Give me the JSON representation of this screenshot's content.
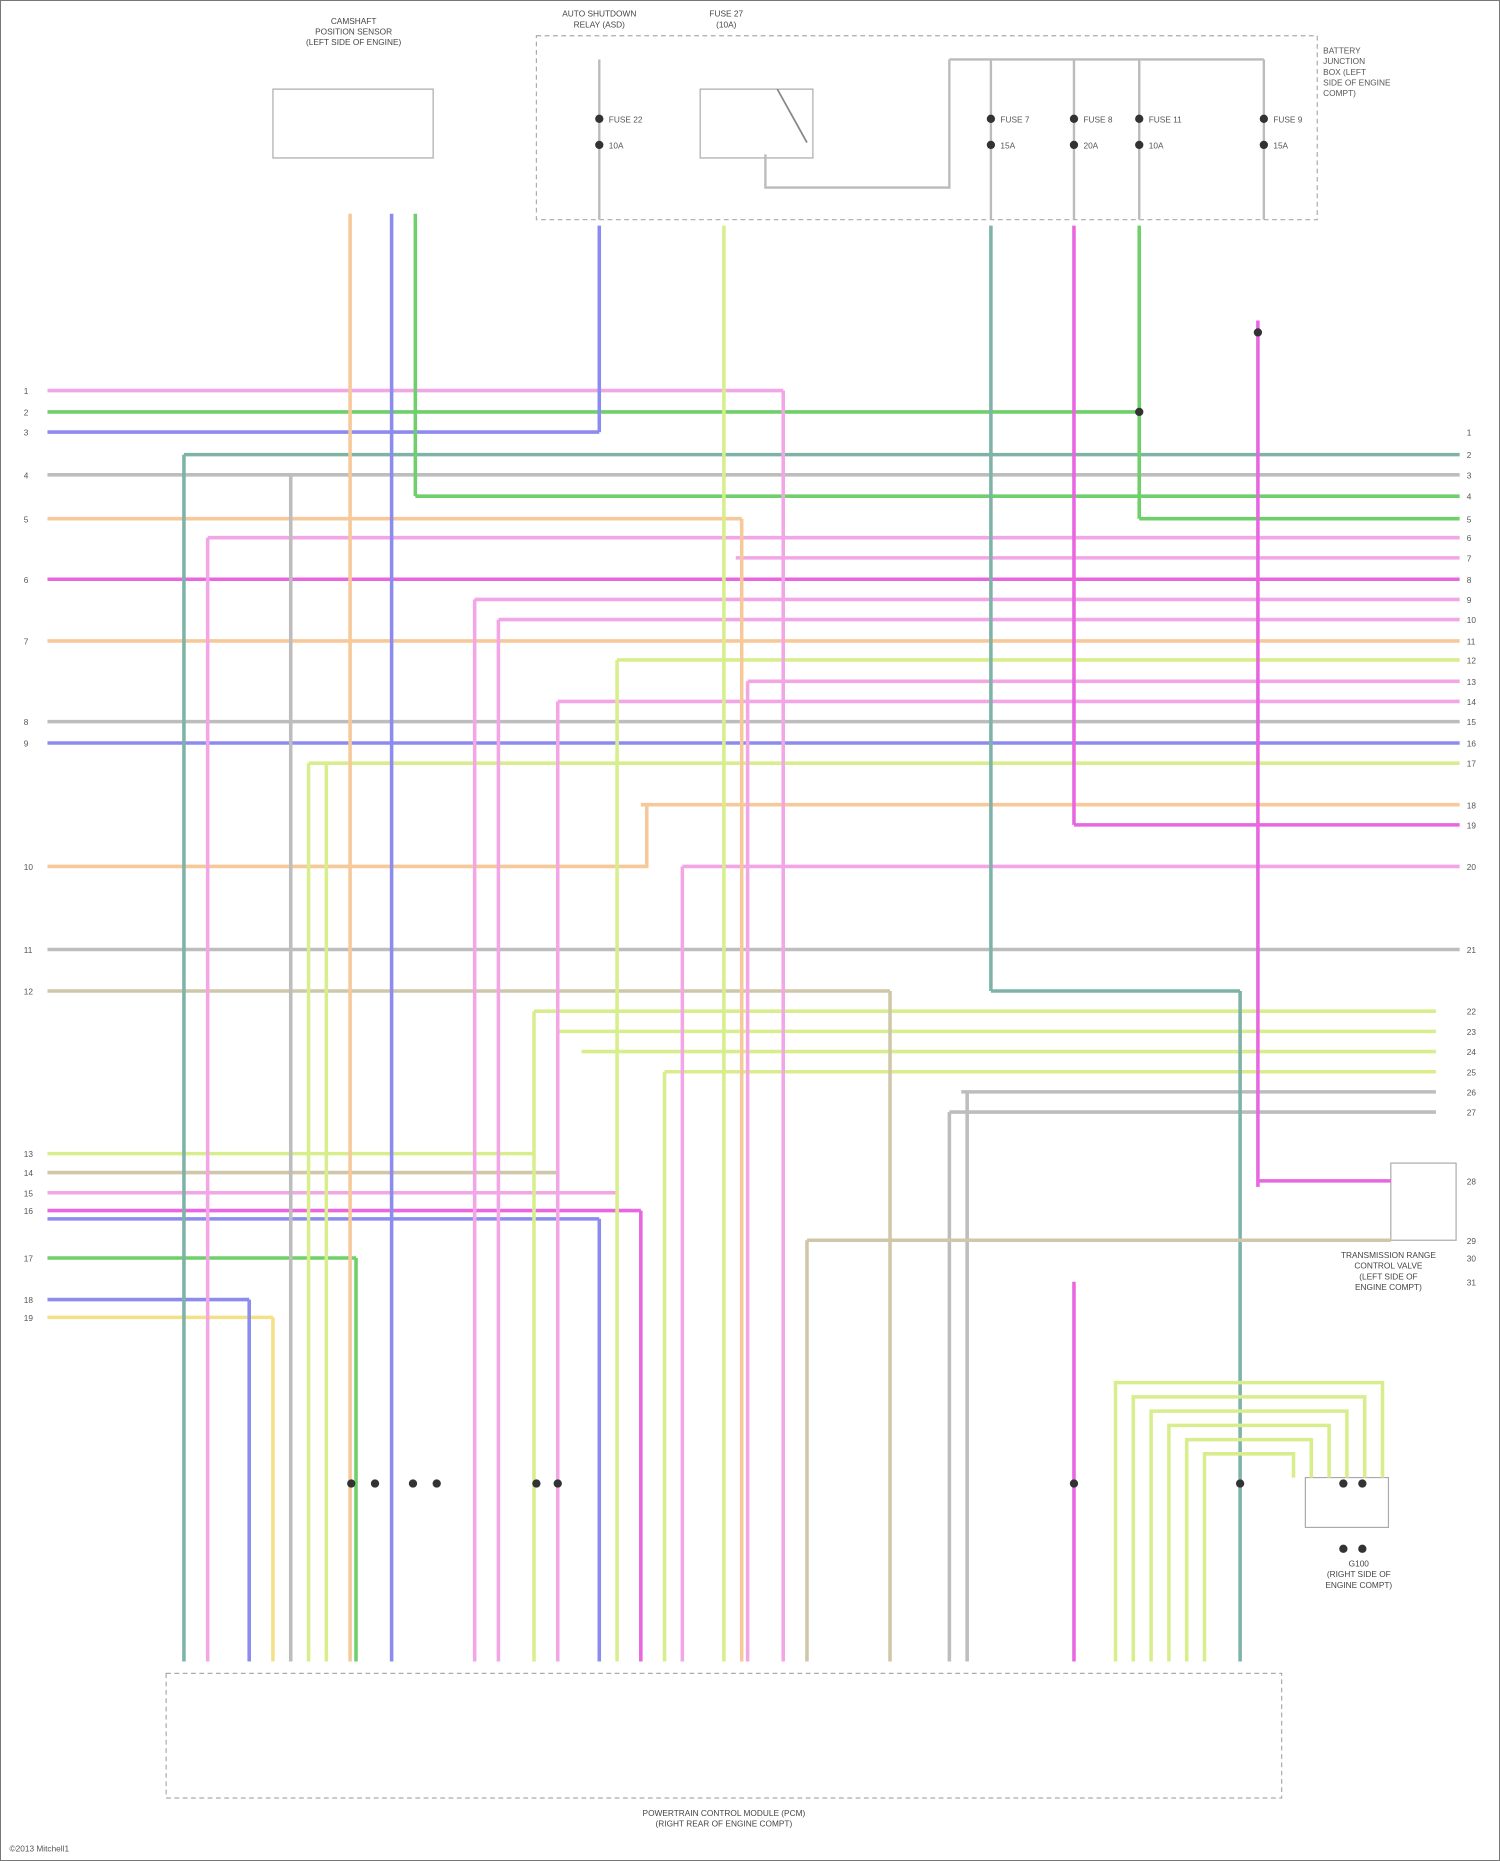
{
  "components": {
    "sensor": {
      "title_lines": [
        "CAMSHAFT",
        "POSITION SENSOR",
        "(LEFT SIDE OF ENGINE)"
      ]
    },
    "relay_box": {
      "title_lines": [
        "AUTO SHUTDOWN",
        "RELAY (ASD)"
      ],
      "relay_title": [
        "FUSE 27",
        "(10A)"
      ],
      "side_label": [
        "BATTERY",
        "JUNCTION",
        "BOX (LEFT",
        "SIDE OF ENGINE",
        "COMPT)"
      ]
    },
    "fuses": [
      "FUSE 22",
      "FUSE 7",
      "FUSE 8",
      "FUSE 11",
      "FUSE 9"
    ],
    "fuse_ratings": [
      "10A",
      "15A",
      "20A",
      "10A",
      "15A"
    ],
    "solenoid": {
      "title_lines": [
        "TRANSMISSION RANGE",
        "CONTROL VALVE",
        "(LEFT SIDE OF",
        "ENGINE COMPT)"
      ]
    },
    "ground": {
      "title_lines": [
        "G100",
        "(RIGHT SIDE OF",
        "ENGINE COMPT)"
      ]
    },
    "pcm": {
      "title_lines": [
        "POWERTRAIN CONTROL MODULE (PCM)",
        "(RIGHT REAR OF ENGINE COMPT)"
      ]
    }
  },
  "left_pins": [
    "1",
    "2",
    "3",
    "4",
    "5",
    "6",
    "7",
    "8",
    "9",
    "10",
    "11",
    "12",
    "13",
    "14",
    "15",
    "16",
    "17",
    "18",
    "19"
  ],
  "right_pins": [
    "1",
    "2",
    "3",
    "4",
    "5",
    "6",
    "7",
    "8",
    "9",
    "10",
    "11",
    "12",
    "13",
    "14",
    "15",
    "16",
    "17",
    "18",
    "19",
    "20",
    "21",
    "22",
    "23",
    "24",
    "25",
    "26",
    "27",
    "28",
    "29",
    "30",
    "31"
  ],
  "wire_colors": {
    "pink": "#f2a6e6",
    "magenta": "#e866e0",
    "green": "#6fcf6a",
    "blue": "#8c8cf0",
    "teal": "#7fb3a8",
    "gray": "#bdbdbd",
    "tan": "#cfc7a8",
    "orange": "#f7c99a",
    "yellowgreen": "#d8ee8c",
    "yellow": "#f5e08a",
    "dash": "#b0b0b0"
  },
  "footer": "©2013 Mitchell1"
}
